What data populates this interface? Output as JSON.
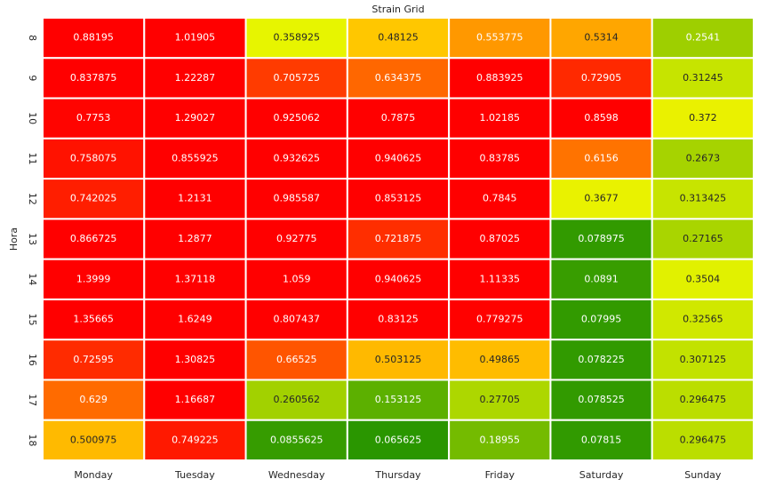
{
  "chart_data": {
    "type": "heatmap",
    "title": "Strain Grid",
    "ylabel": "Hora",
    "x": [
      "Monday",
      "Tuesday",
      "Wednesday",
      "Thursday",
      "Friday",
      "Saturday",
      "Sunday"
    ],
    "y": [
      "8",
      "9",
      "10",
      "11",
      "12",
      "13",
      "14",
      "15",
      "16",
      "17",
      "18"
    ],
    "values": [
      [
        0.88195,
        1.01905,
        0.358925,
        0.48125,
        0.553775,
        0.5314,
        0.2541
      ],
      [
        0.837875,
        1.22287,
        0.705725,
        0.634375,
        0.883925,
        0.72905,
        0.31245
      ],
      [
        0.7753,
        1.29027,
        0.925062,
        0.7875,
        1.02185,
        0.8598,
        0.372
      ],
      [
        0.758075,
        0.855925,
        0.932625,
        0.940625,
        0.83785,
        0.6156,
        0.2673
      ],
      [
        0.742025,
        1.2131,
        0.985587,
        0.853125,
        0.7845,
        0.3677,
        0.313425
      ],
      [
        0.866725,
        1.2877,
        0.92775,
        0.721875,
        0.87025,
        0.078975,
        0.27165
      ],
      [
        1.3999,
        1.37118,
        1.059,
        0.940625,
        1.11335,
        0.0891,
        0.3504
      ],
      [
        1.35665,
        1.6249,
        0.807437,
        0.83125,
        0.779275,
        0.07995,
        0.32565
      ],
      [
        0.72595,
        1.30825,
        0.66525,
        0.503125,
        0.49865,
        0.078225,
        0.307125
      ],
      [
        0.629,
        1.16687,
        0.260562,
        0.153125,
        0.27705,
        0.078525,
        0.296475
      ],
      [
        0.500975,
        0.749225,
        0.0855625,
        0.065625,
        0.18955,
        0.07815,
        0.296475
      ]
    ],
    "colorscale": [
      [
        0.065,
        "#2a9600"
      ],
      [
        0.15,
        "#5aaf00"
      ],
      [
        0.27,
        "#a8d400"
      ],
      [
        0.36,
        "#e8f500"
      ],
      [
        0.48,
        "#ffc800"
      ],
      [
        0.55,
        "#ff9a00"
      ],
      [
        0.63,
        "#ff6a00"
      ],
      [
        0.7,
        "#ff4000"
      ],
      [
        0.78,
        "#ff0000"
      ]
    ]
  }
}
